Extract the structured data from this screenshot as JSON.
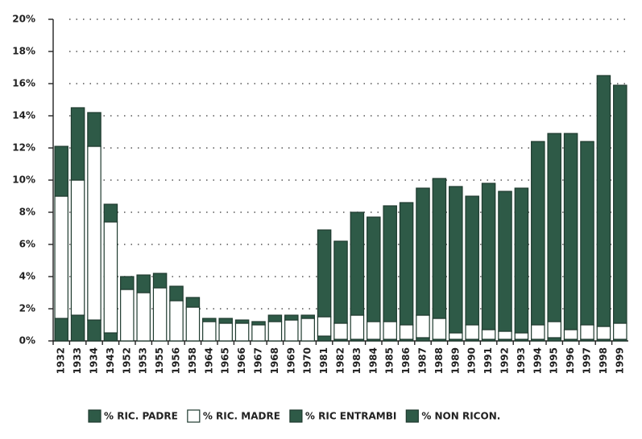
{
  "chart_data": {
    "type": "stacked_bar",
    "categories": [
      "1932",
      "1933",
      "1934",
      "1943",
      "1952",
      "1953",
      "1955",
      "1956",
      "1958",
      "1964",
      "1965",
      "1966",
      "1967",
      "1968",
      "1969",
      "1970",
      "1981",
      "1982",
      "1983",
      "1984",
      "1985",
      "1986",
      "1987",
      "1988",
      "1989",
      "1990",
      "1991",
      "1992",
      "1993",
      "1994",
      "1995",
      "1996",
      "1997",
      "1998",
      "1999"
    ],
    "series": [
      {
        "name": "% RIC. PADRE",
        "color": "#2e5a47",
        "values": [
          1.4,
          1.6,
          1.3,
          0.5,
          0,
          0,
          0,
          0,
          0,
          0,
          0,
          0,
          0,
          0,
          0,
          0,
          0.3,
          0.1,
          0.1,
          0.1,
          0.1,
          0.1,
          0.2,
          0.1,
          0.1,
          0.1,
          0.1,
          0.1,
          0.1,
          0.1,
          0.2,
          0.1,
          0.1,
          0.1,
          0.1
        ]
      },
      {
        "name": "% RIC. MADRE",
        "color": "#ffffff",
        "values": [
          7.6,
          8.4,
          10.8,
          6.9,
          3.2,
          3.0,
          3.3,
          2.5,
          2.1,
          1.2,
          1.1,
          1.1,
          1.0,
          1.2,
          1.3,
          1.4,
          1.2,
          1.0,
          1.5,
          1.1,
          1.1,
          0.9,
          1.4,
          1.3,
          0.4,
          0.9,
          0.6,
          0.5,
          0.4,
          0.9,
          1.0,
          0.6,
          0.9,
          0.8,
          1.0
        ]
      },
      {
        "name": "% RIC ENTRAMBI",
        "color": "#2e5a47",
        "values": [
          3.1,
          4.5,
          2.1,
          1.1,
          0.8,
          1.1,
          0.9,
          0.9,
          0.6,
          0.2,
          0.3,
          0.2,
          0.2,
          0.4,
          0.3,
          0.2,
          5.4,
          5.1,
          6.4,
          6.5,
          7.2,
          7.6,
          7.9,
          8.7,
          9.1,
          8.0,
          9.1,
          8.7,
          9.0,
          11.4,
          11.7,
          12.2,
          11.4,
          15.6,
          14.8
        ]
      },
      {
        "name": "% NON RICON.",
        "color": "#2e5a47",
        "values": [
          null,
          null,
          null,
          null,
          null,
          null,
          null,
          null,
          null,
          null,
          null,
          null,
          null,
          null,
          null,
          null,
          null,
          null,
          null,
          null,
          null,
          null,
          null,
          null,
          null,
          null,
          null,
          null,
          null,
          null,
          null,
          null,
          null,
          null,
          null
        ]
      }
    ],
    "ylim": [
      0,
      20
    ],
    "yticks": [
      {
        "value": 0,
        "label": "0%"
      },
      {
        "value": 2,
        "label": "2%"
      },
      {
        "value": 4,
        "label": "4%"
      },
      {
        "value": 6,
        "label": "6%"
      },
      {
        "value": 8,
        "label": "8%"
      },
      {
        "value": 10,
        "label": "10%"
      },
      {
        "value": 12,
        "label": "12%"
      },
      {
        "value": 14,
        "label": "14%"
      },
      {
        "value": 16,
        "label": "16%"
      },
      {
        "value": 18,
        "label": "18%"
      },
      {
        "value": 20,
        "label": "20%"
      }
    ],
    "grid": true,
    "legend": "bottom"
  }
}
